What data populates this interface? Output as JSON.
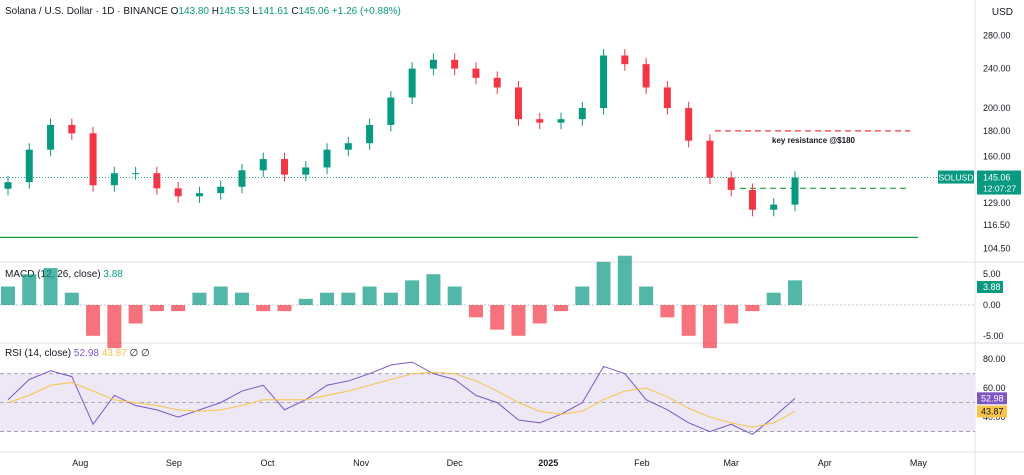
{
  "header": {
    "symbol_title": "Solana / U.S. Dollar · 1D · BINANCE",
    "open_label": "O",
    "open": "143.80",
    "high_label": "H",
    "high": "145.53",
    "low_label": "L",
    "low": "141.61",
    "close_label": "C",
    "close": "145.06",
    "change": "+1.26 (+0.88%)",
    "currency": "USD"
  },
  "macd_header": {
    "label": "MACD (12, 26, close)",
    "value": "3.88"
  },
  "rsi_header": {
    "label": "RSI (14, close)",
    "value1": "52.98",
    "value2": "43.87",
    "extra": "∅ ∅"
  },
  "colors": {
    "up": "#089981",
    "down": "#f23645",
    "rsi": "#7e57c2",
    "rsi_ma": "#f7c548",
    "support": "#1e9e3a",
    "resistance": "#f23645",
    "rsi_band": "#ede7f6"
  },
  "chart_data": [
    {
      "type": "candlestick",
      "symbol": "SOLUSD",
      "y_axis_ticks": [
        "280.00",
        "240.00",
        "200.00",
        "180.00",
        "160.00",
        "145.06",
        "129.00",
        "116.50",
        "104.50"
      ],
      "y_scale": "log",
      "x_axis_ticks": [
        "Aug",
        "Sep",
        "Oct",
        "Nov",
        "Dec",
        "2025",
        "Feb",
        "Mar",
        "Apr",
        "May"
      ],
      "last_price": "145.06",
      "last_price_label": "SOLUSD",
      "countdown": "12:07:27",
      "annotations": [
        {
          "text": "key resistance @$180",
          "level": 180
        }
      ],
      "horizontal_levels": [
        {
          "value": 180,
          "style": "dashed",
          "color": "red"
        },
        {
          "value": 138,
          "style": "dashed",
          "color": "green"
        },
        {
          "value": 110,
          "style": "solid",
          "color": "green"
        }
      ],
      "series": [
        {
          "x": [
            "Jul 8",
            "Jul 15",
            "Jul 22",
            "Jul 29",
            "Aug 5",
            "Aug 12",
            "Aug 19",
            "Aug 26",
            "Sep 2",
            "Sep 9",
            "Sep 16",
            "Sep 23",
            "Sep 30",
            "Oct 7",
            "Oct 14",
            "Oct 21",
            "Oct 28",
            "Nov 4",
            "Nov 11",
            "Nov 18",
            "Nov 25",
            "Dec 2",
            "Dec 9",
            "Dec 16",
            "Dec 23",
            "Dec 30",
            "Jan 6",
            "Jan 13",
            "Jan 20",
            "Jan 27",
            "Feb 3",
            "Feb 10",
            "Feb 17",
            "Feb 24",
            "Mar 3",
            "Mar 10",
            "Mar 17",
            "Mar 24"
          ],
          "close": [
            142,
            165,
            185,
            178,
            140,
            148,
            148,
            138,
            133,
            135,
            139,
            150,
            158,
            147,
            152,
            165,
            170,
            185,
            210,
            240,
            250,
            240,
            230,
            220,
            190,
            187,
            190,
            200,
            255,
            245,
            220,
            200,
            172,
            145,
            137,
            125,
            128,
            145
          ]
        }
      ]
    },
    {
      "type": "bar",
      "title": "MACD (12, 26, close)",
      "y_axis_ticks": [
        "5.00",
        "0.00",
        "-5.00"
      ],
      "last_value": "3.88",
      "series": [
        {
          "name": "histogram",
          "values": [
            3,
            5,
            6,
            2,
            -5,
            -7,
            -3,
            -1,
            -1,
            2,
            3,
            2,
            -1,
            -1,
            1,
            2,
            2,
            3,
            2,
            4,
            5,
            3,
            -2,
            -4,
            -5,
            -3,
            -1,
            3,
            7,
            8,
            3,
            -2,
            -5,
            -7,
            -3,
            -1,
            2,
            4
          ]
        }
      ]
    },
    {
      "type": "line",
      "title": "RSI (14, close)",
      "y_axis_ticks": [
        "80.00",
        "60.00",
        "40.00"
      ],
      "bands": [
        70,
        50,
        30
      ],
      "series": [
        {
          "name": "RSI",
          "last": "52.98",
          "values": [
            52,
            66,
            72,
            68,
            35,
            55,
            48,
            45,
            40,
            45,
            50,
            58,
            62,
            45,
            52,
            62,
            65,
            70,
            76,
            78,
            70,
            66,
            55,
            50,
            38,
            36,
            42,
            50,
            75,
            70,
            52,
            45,
            36,
            30,
            35,
            28,
            40,
            52.98
          ]
        },
        {
          "name": "MA",
          "last": "43.87",
          "values": [
            50,
            55,
            62,
            64,
            58,
            52,
            50,
            48,
            45,
            44,
            45,
            48,
            52,
            52,
            52,
            55,
            58,
            62,
            66,
            70,
            71,
            70,
            65,
            58,
            50,
            44,
            42,
            44,
            52,
            58,
            60,
            54,
            46,
            40,
            36,
            33,
            36,
            43.87
          ]
        }
      ]
    }
  ]
}
